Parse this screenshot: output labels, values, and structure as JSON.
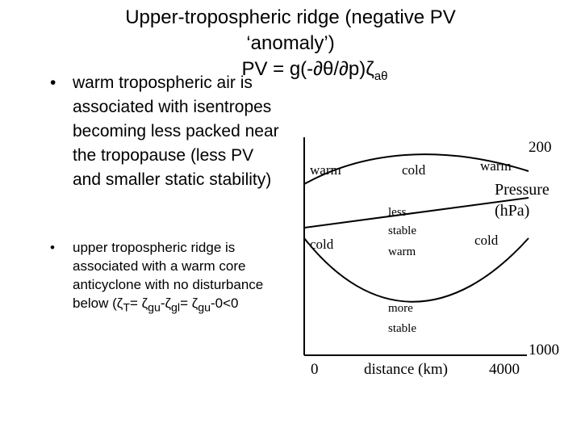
{
  "title": {
    "line1": "Upper-tropospheric ridge (negative PV",
    "line2": "‘anomaly’)",
    "line3": "PV = g(-∂θ/∂p)ζ",
    "line3_sub": "aθ"
  },
  "bullets": [
    {
      "marker": "•",
      "text": "warm tropospheric air is associated with isentropes becoming less packed near the tropopause (less PV and smaller static stability)"
    },
    {
      "marker": "•",
      "text_parts": [
        {
          "t": "upper tropospheric ridge is associated with a warm core anticyclone with no disturbance below (ζ"
        },
        {
          "sub": "T"
        },
        {
          "t": "= ζ"
        },
        {
          "sub": "gu"
        },
        {
          "t": "-ζ"
        },
        {
          "sub": "gl"
        },
        {
          "t": "= ζ"
        },
        {
          "sub": "gu"
        },
        {
          "t": "-0<0"
        }
      ]
    }
  ],
  "diagram": {
    "labels": {
      "warm_left": "warm",
      "cold_top": "cold",
      "warm_right": "warm",
      "pressure_top": "200",
      "pressure_label_1": "Pressure",
      "pressure_label_2": "(hPa)",
      "cold_left": "cold",
      "less_stable_1": "less",
      "less_stable_2": "stable",
      "less_stable_3": "warm",
      "cold_right": "cold",
      "more_stable_1": "more",
      "more_stable_2": "stable",
      "pressure_bottom": "1000",
      "x_start": "0",
      "x_label": "distance (km)",
      "x_end": "4000"
    }
  }
}
